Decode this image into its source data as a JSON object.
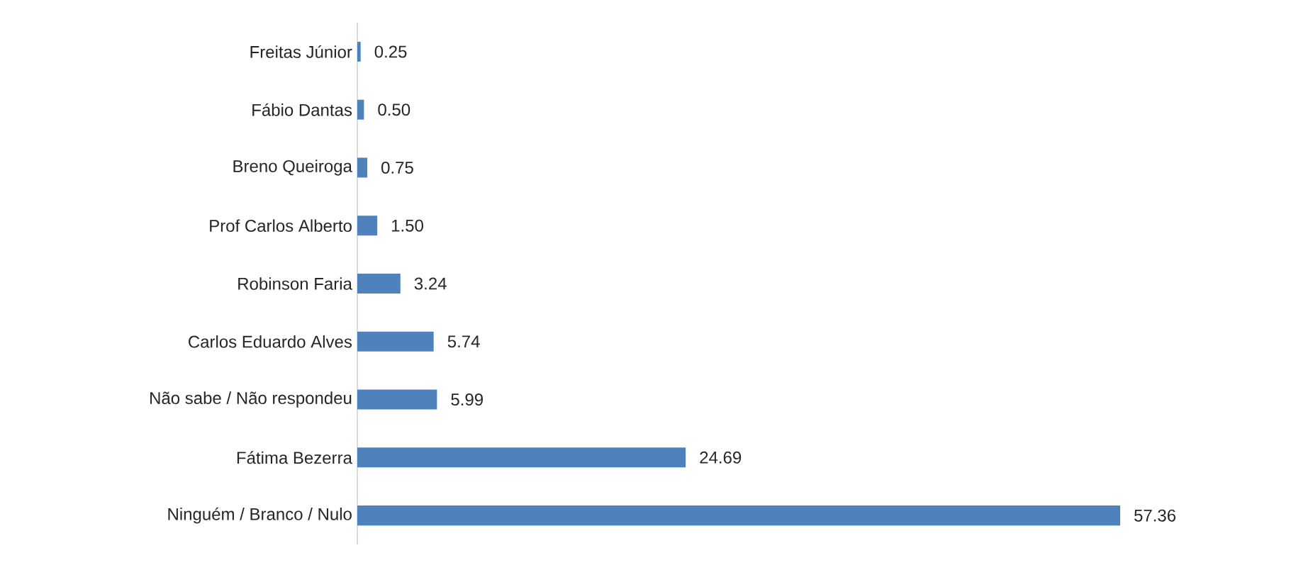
{
  "chart_data": {
    "type": "bar",
    "orientation": "horizontal",
    "categories": [
      "Freitas Júnior",
      "Fábio Dantas",
      "Breno Queiroga",
      "Prof Carlos Alberto",
      "Robinson Faria",
      "Carlos Eduardo Alves",
      "Não sabe / Não respondeu",
      "Fátima Bezerra",
      "Ninguém / Branco / Nulo"
    ],
    "values": [
      0.25,
      0.5,
      0.75,
      1.5,
      3.24,
      5.74,
      5.99,
      24.69,
      57.36
    ],
    "value_labels": [
      "0.25",
      "0.50",
      "0.75",
      "1.50",
      "3.24",
      "5.74",
      "5.99",
      "24.69",
      "57.36"
    ],
    "color": "#4f81bd"
  }
}
